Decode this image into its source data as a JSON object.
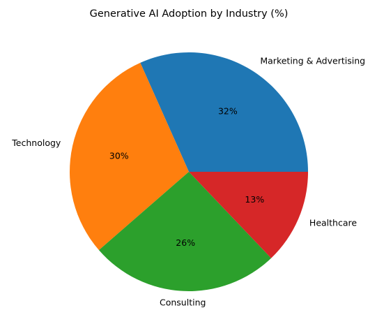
{
  "chart_data": {
    "type": "pie",
    "title": "Generative AI Adoption by Industry (%)",
    "start_angle_deg": 0,
    "direction": "counterclockwise",
    "slices": [
      {
        "label": "Marketing & Advertising",
        "value": 32,
        "pct_label": "32%",
        "color": "#1f77b4"
      },
      {
        "label": "Technology",
        "value": 30,
        "pct_label": "30%",
        "color": "#ff7f0e"
      },
      {
        "label": "Consulting",
        "value": 26,
        "pct_label": "26%",
        "color": "#2ca02c"
      },
      {
        "label": "Healthcare",
        "value": 13,
        "pct_label": "13%",
        "color": "#d62728"
      }
    ]
  }
}
